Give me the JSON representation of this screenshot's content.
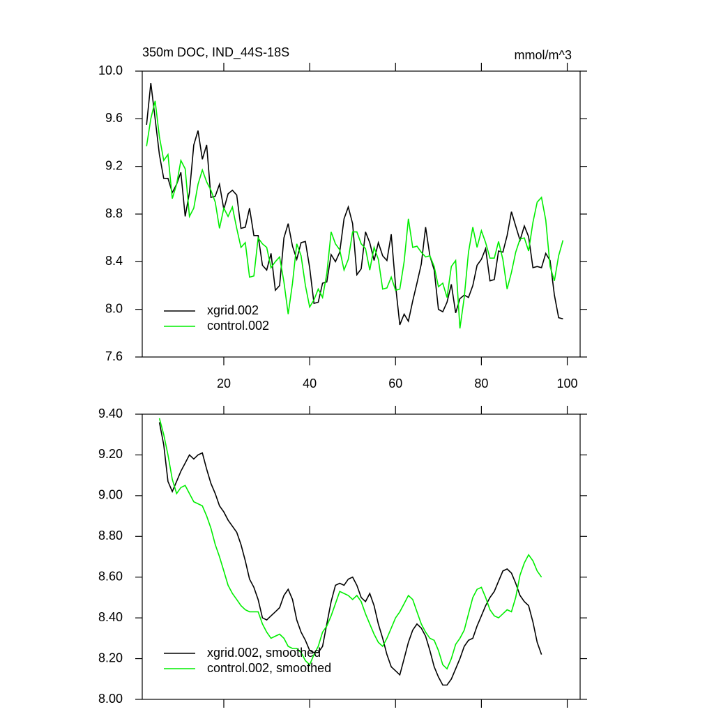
{
  "chart_data": [
    {
      "type": "line",
      "title": "350m DOC, IND_44S-18S",
      "units_label": "mmol/m^3",
      "x": [
        2,
        3,
        4,
        5,
        6,
        7,
        8,
        9,
        10,
        11,
        12,
        13,
        14,
        15,
        16,
        17,
        18,
        19,
        20,
        21,
        22,
        23,
        24,
        25,
        26,
        27,
        28,
        29,
        30,
        31,
        32,
        33,
        34,
        35,
        36,
        37,
        38,
        39,
        40,
        41,
        42,
        43,
        44,
        45,
        46,
        47,
        48,
        49,
        50,
        51,
        52,
        53,
        54,
        55,
        56,
        57,
        58,
        59,
        60,
        61,
        62,
        63,
        64,
        65,
        66,
        67,
        68,
        69,
        70,
        71,
        72,
        73,
        74,
        75,
        76,
        77,
        78,
        79,
        80,
        81,
        82,
        83,
        84,
        85,
        86,
        87,
        88,
        89,
        90,
        91,
        92,
        93,
        94,
        95,
        96,
        97,
        98,
        99
      ],
      "series": [
        {
          "name": "xgrid.002",
          "color": "#000000",
          "values": [
            9.55,
            9.9,
            9.6,
            9.3,
            9.1,
            9.1,
            8.98,
            9.05,
            9.15,
            8.78,
            8.98,
            9.38,
            9.5,
            9.26,
            9.38,
            8.94,
            8.95,
            9.05,
            8.84,
            8.97,
            9.0,
            8.96,
            8.68,
            8.69,
            8.85,
            8.62,
            8.62,
            8.37,
            8.33,
            8.47,
            8.16,
            8.2,
            8.6,
            8.72,
            8.53,
            8.42,
            8.56,
            8.57,
            8.35,
            8.05,
            8.06,
            8.22,
            8.23,
            8.46,
            8.4,
            8.48,
            8.76,
            8.86,
            8.72,
            8.29,
            8.34,
            8.65,
            8.56,
            8.41,
            8.56,
            8.45,
            8.41,
            8.63,
            8.2,
            7.87,
            7.96,
            7.9,
            8.07,
            8.22,
            8.38,
            8.69,
            8.45,
            8.33,
            8.0,
            7.98,
            8.06,
            8.21,
            7.97,
            8.09,
            8.12,
            8.1,
            8.2,
            8.37,
            8.42,
            8.51,
            8.24,
            8.25,
            8.49,
            8.48,
            8.62,
            8.82,
            8.7,
            8.58,
            8.7,
            8.61,
            8.35,
            8.36,
            8.35,
            8.47,
            8.41,
            8.12,
            7.93,
            7.92
          ]
        },
        {
          "name": "control.002",
          "color": "#00ee00",
          "values": [
            9.37,
            9.6,
            9.75,
            9.45,
            9.25,
            9.3,
            8.93,
            9.05,
            9.25,
            9.18,
            8.78,
            8.85,
            9.05,
            9.17,
            9.07,
            9.0,
            8.9,
            8.68,
            8.85,
            8.78,
            8.86,
            8.68,
            8.52,
            8.56,
            8.27,
            8.28,
            8.6,
            8.55,
            8.52,
            8.35,
            8.4,
            8.44,
            8.23,
            7.96,
            8.22,
            8.55,
            8.45,
            8.2,
            8.02,
            8.08,
            8.17,
            8.1,
            8.3,
            8.65,
            8.55,
            8.5,
            8.33,
            8.42,
            8.65,
            8.65,
            8.55,
            8.51,
            8.33,
            8.52,
            8.42,
            8.17,
            8.18,
            8.27,
            8.16,
            8.17,
            8.4,
            8.76,
            8.52,
            8.53,
            8.48,
            8.44,
            8.45,
            8.36,
            8.19,
            8.22,
            8.1,
            8.36,
            8.41,
            7.84,
            8.1,
            8.48,
            8.69,
            8.52,
            8.66,
            8.56,
            8.43,
            8.43,
            8.57,
            8.42,
            8.17,
            8.31,
            8.48,
            8.59,
            8.6,
            8.49,
            8.73,
            8.9,
            8.94,
            8.75,
            8.36,
            8.24,
            8.45,
            8.58
          ]
        }
      ],
      "xlim": [
        1,
        103
      ],
      "xticks": [
        20,
        40,
        60,
        80,
        100
      ],
      "ylim": [
        7.6,
        10.0
      ],
      "yticks": [
        {
          "value": 7.6,
          "label": "7.6"
        },
        {
          "value": 8.0,
          "label": "8.0"
        },
        8.4,
        8.8,
        9.2,
        9.6,
        {
          "value": 10.0,
          "label": "10.0"
        }
      ],
      "legend": "lower left"
    },
    {
      "type": "line",
      "x": [
        5,
        6,
        7,
        8,
        9,
        10,
        11,
        12,
        13,
        14,
        15,
        16,
        17,
        18,
        19,
        20,
        21,
        22,
        23,
        24,
        25,
        26,
        27,
        28,
        29,
        30,
        31,
        32,
        33,
        34,
        35,
        36,
        37,
        38,
        39,
        40,
        41,
        42,
        43,
        44,
        45,
        46,
        47,
        48,
        49,
        50,
        51,
        52,
        53,
        54,
        55,
        56,
        57,
        58,
        59,
        60,
        61,
        62,
        63,
        64,
        65,
        66,
        67,
        68,
        69,
        70,
        71,
        72,
        73,
        74,
        75,
        76,
        77,
        78,
        79,
        80,
        81,
        82,
        83,
        84,
        85,
        86,
        87,
        88,
        89,
        90,
        91,
        92,
        93,
        94
      ],
      "series": [
        {
          "name": "xgrid.002, smoothed",
          "color": "#000000",
          "values": [
            9.36,
            9.25,
            9.07,
            9.02,
            9.07,
            9.12,
            9.16,
            9.2,
            9.18,
            9.2,
            9.21,
            9.13,
            9.06,
            9.01,
            8.95,
            8.92,
            8.88,
            8.85,
            8.82,
            8.76,
            8.68,
            8.59,
            8.55,
            8.49,
            8.4,
            8.39,
            8.41,
            8.43,
            8.45,
            8.51,
            8.54,
            8.49,
            8.39,
            8.33,
            8.29,
            8.24,
            8.23,
            8.23,
            8.26,
            8.37,
            8.48,
            8.56,
            8.57,
            8.56,
            8.59,
            8.6,
            8.56,
            8.5,
            8.48,
            8.52,
            8.46,
            8.37,
            8.3,
            8.22,
            8.16,
            8.14,
            8.12,
            8.2,
            8.28,
            8.34,
            8.37,
            8.35,
            8.31,
            8.24,
            8.16,
            8.11,
            8.07,
            8.07,
            8.1,
            8.15,
            8.2,
            8.26,
            8.29,
            8.3,
            8.36,
            8.41,
            8.46,
            8.5,
            8.53,
            8.58,
            8.63,
            8.64,
            8.62,
            8.57,
            8.51,
            8.48,
            8.46,
            8.38,
            8.28,
            8.22
          ]
        },
        {
          "name": "control.002, smoothed",
          "color": "#00ee00",
          "values": [
            9.38,
            9.3,
            9.2,
            9.08,
            9.01,
            9.04,
            9.05,
            9.01,
            8.97,
            8.96,
            8.95,
            8.9,
            8.84,
            8.76,
            8.7,
            8.63,
            8.56,
            8.52,
            8.49,
            8.46,
            8.44,
            8.43,
            8.43,
            8.43,
            8.37,
            8.33,
            8.3,
            8.31,
            8.32,
            8.3,
            8.26,
            8.25,
            8.25,
            8.23,
            8.19,
            8.17,
            8.22,
            8.26,
            8.33,
            8.36,
            8.41,
            8.47,
            8.53,
            8.52,
            8.51,
            8.49,
            8.51,
            8.48,
            8.42,
            8.37,
            8.32,
            8.28,
            8.26,
            8.3,
            8.35,
            8.4,
            8.43,
            8.47,
            8.51,
            8.49,
            8.43,
            8.37,
            8.33,
            8.3,
            8.29,
            8.24,
            8.17,
            8.15,
            8.2,
            8.27,
            8.3,
            8.34,
            8.42,
            8.5,
            8.54,
            8.55,
            8.5,
            8.44,
            8.41,
            8.4,
            8.42,
            8.44,
            8.43,
            8.5,
            8.61,
            8.67,
            8.71,
            8.68,
            8.63,
            8.6
          ]
        }
      ],
      "xlim": [
        1,
        103
      ],
      "xticks": [
        20,
        40,
        60,
        80,
        100
      ],
      "xtick_labels": false,
      "ylim": [
        8.0,
        9.4
      ],
      "yticks": [
        {
          "value": 8.0,
          "label": "8.00"
        },
        {
          "value": 8.2,
          "label": "8.20"
        },
        {
          "value": 8.4,
          "label": "8.40"
        },
        {
          "value": 8.6,
          "label": "8.60"
        },
        {
          "value": 8.8,
          "label": "8.80"
        },
        {
          "value": 9.0,
          "label": "9.00"
        },
        {
          "value": 9.2,
          "label": "9.20"
        },
        {
          "value": 9.4,
          "label": "9.40"
        }
      ],
      "legend": "lower left"
    }
  ]
}
